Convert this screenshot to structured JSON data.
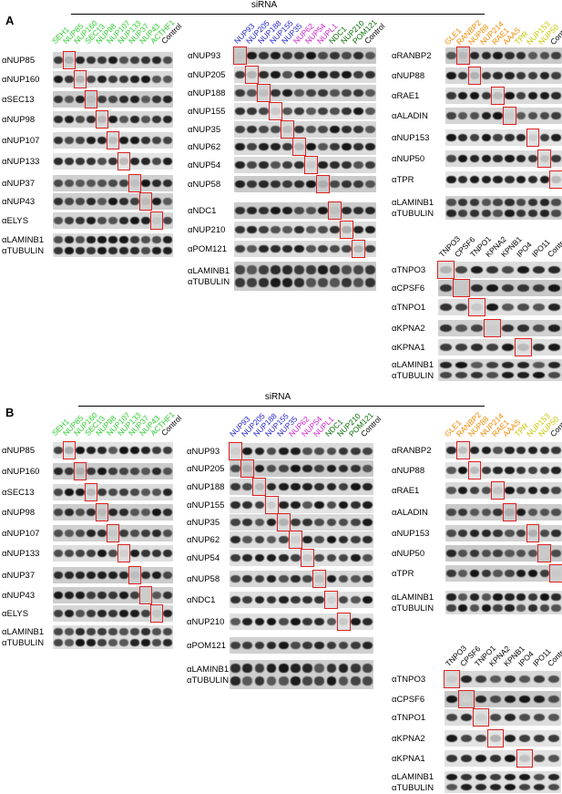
{
  "header": {
    "title": "siRNA"
  },
  "colors": {
    "green_light": "#2ecc2e",
    "blue": "#2222cc",
    "magenta": "#d020d0",
    "green_dark": "#0a6e0a",
    "orange": "#f08a00",
    "yellow": "#c8c800",
    "black": "#000000",
    "highlight_box": "#e02020"
  },
  "panels": [
    {
      "label": "A",
      "groups": [
        {
          "id": "nup-left",
          "columns": [
            {
              "text": "SEH1",
              "color": "green_light"
            },
            {
              "text": "NUP85",
              "color": "green_light"
            },
            {
              "text": "NUP160",
              "color": "green_light"
            },
            {
              "text": "SEC13",
              "color": "green_light"
            },
            {
              "text": "NUP98",
              "color": "green_light"
            },
            {
              "text": "NUP107",
              "color": "green_light"
            },
            {
              "text": "NUP133",
              "color": "green_light"
            },
            {
              "text": "NUP37",
              "color": "green_light"
            },
            {
              "text": "NUP43",
              "color": "green_light"
            },
            {
              "text": "ACTHF1",
              "color": "green_light"
            },
            {
              "text": "Control",
              "color": "black"
            }
          ],
          "rows": [
            {
              "label": "αNUP85",
              "highlight": 1
            },
            {
              "label": "αNUP160",
              "highlight": 2
            },
            {
              "label": "αSEC13",
              "highlight": 3
            },
            {
              "label": "αNUP98",
              "highlight": 4
            },
            {
              "label": "αNUP107",
              "highlight": 5
            },
            {
              "label": "αNUP133",
              "highlight": 6
            },
            {
              "label": "αNUP37",
              "highlight": 7
            },
            {
              "label": "αNUP43",
              "highlight": 8
            },
            {
              "label": "αELYS",
              "highlight": 9
            },
            {
              "label": "αLAMINB1\nαTUBULIN",
              "highlight": -1
            }
          ]
        },
        {
          "id": "nup-middle",
          "columns": [
            {
              "text": "NUP93",
              "color": "blue"
            },
            {
              "text": "NUP205",
              "color": "blue"
            },
            {
              "text": "NUP188",
              "color": "blue"
            },
            {
              "text": "NUP155",
              "color": "blue"
            },
            {
              "text": "NUP35",
              "color": "blue"
            },
            {
              "text": "NUP62",
              "color": "magenta"
            },
            {
              "text": "NUP54",
              "color": "magenta"
            },
            {
              "text": "NUPL1",
              "color": "magenta"
            },
            {
              "text": "NDC1",
              "color": "green_dark"
            },
            {
              "text": "NUP210",
              "color": "green_dark"
            },
            {
              "text": "POM121",
              "color": "green_dark"
            },
            {
              "text": "Control",
              "color": "black"
            }
          ],
          "rows": [
            {
              "label": "αNUP93",
              "highlight": 0
            },
            {
              "label": "αNUP205",
              "highlight": 1
            },
            {
              "label": "αNUP188",
              "highlight": 2
            },
            {
              "label": "αNUP155",
              "highlight": 3
            },
            {
              "label": "αNUP35",
              "highlight": 4
            },
            {
              "label": "αNUP62",
              "highlight": 5
            },
            {
              "label": "αNUP54",
              "highlight": 6
            },
            {
              "label": "αNUP58",
              "highlight": 7
            },
            {
              "label": "αNDC1",
              "highlight": 8
            },
            {
              "label": "αNUP210",
              "highlight": 9
            },
            {
              "label": "αPOM121",
              "highlight": 10
            },
            {
              "label": "αLAMINB1\nαTUBULIN",
              "highlight": -1
            }
          ]
        },
        {
          "id": "nup-right",
          "columns": [
            {
              "text": "GLE1",
              "color": "orange"
            },
            {
              "text": "RANBP2",
              "color": "orange"
            },
            {
              "text": "NUP88",
              "color": "orange"
            },
            {
              "text": "NUP214",
              "color": "orange"
            },
            {
              "text": "RAE1",
              "color": "orange"
            },
            {
              "text": "AAAS",
              "color": "orange"
            },
            {
              "text": "TPR",
              "color": "yellow"
            },
            {
              "text": "NUP153",
              "color": "yellow"
            },
            {
              "text": "NUP50",
              "color": "yellow"
            },
            {
              "text": "Control",
              "color": "black"
            }
          ],
          "rows": [
            {
              "label": "αRANBP2",
              "highlight": 1
            },
            {
              "label": "αNUP88",
              "highlight": 2
            },
            {
              "label": "αRAE1",
              "highlight": 4
            },
            {
              "label": "αALADIN",
              "highlight": 5
            },
            {
              "label": "αNUP153",
              "highlight": 7
            },
            {
              "label": "αNUP50",
              "highlight": 8
            },
            {
              "label": "αTPR",
              "highlight": 9
            },
            {
              "label": "αLAMINB1\nαTUBULIN",
              "highlight": -1
            }
          ]
        },
        {
          "id": "transport",
          "columns": [
            {
              "text": "TNPO3",
              "color": "black"
            },
            {
              "text": "CPSF6",
              "color": "black"
            },
            {
              "text": "TNPO1",
              "color": "black"
            },
            {
              "text": "KPNA2",
              "color": "black"
            },
            {
              "text": "KPNB1",
              "color": "black"
            },
            {
              "text": "IPO4",
              "color": "black"
            },
            {
              "text": "IPO11",
              "color": "black"
            },
            {
              "text": "Control",
              "color": "black"
            }
          ],
          "rows": [
            {
              "label": "αTNPO3",
              "highlight": 0
            },
            {
              "label": "αCPSF6",
              "highlight": 1
            },
            {
              "label": "αTNPO1",
              "highlight": 2
            },
            {
              "label": "αKPNA2",
              "highlight": 3
            },
            {
              "label": "αKPNA1",
              "highlight": 5
            },
            {
              "label": "αLAMINB1\nαTUBULIN",
              "highlight": -1
            }
          ]
        }
      ]
    },
    {
      "label": "B",
      "groups": [
        {
          "id": "nup-left",
          "columns": [
            {
              "text": "SEH1",
              "color": "green_light"
            },
            {
              "text": "NUP85",
              "color": "green_light"
            },
            {
              "text": "NUP160",
              "color": "green_light"
            },
            {
              "text": "SEC13",
              "color": "green_light"
            },
            {
              "text": "NUP98",
              "color": "green_light"
            },
            {
              "text": "NUP107",
              "color": "green_light"
            },
            {
              "text": "NUP133",
              "color": "green_light"
            },
            {
              "text": "NUP37",
              "color": "green_light"
            },
            {
              "text": "NUP43",
              "color": "green_light"
            },
            {
              "text": "ACTHF1",
              "color": "green_light"
            },
            {
              "text": "Control",
              "color": "black"
            }
          ],
          "rows": [
            {
              "label": "αNUP85",
              "highlight": 1
            },
            {
              "label": "αNUP160",
              "highlight": 2
            },
            {
              "label": "αSEC13",
              "highlight": 3
            },
            {
              "label": "αNUP98",
              "highlight": 4
            },
            {
              "label": "αNUP107",
              "highlight": 5
            },
            {
              "label": "αNUP133",
              "highlight": 6
            },
            {
              "label": "αNUP37",
              "highlight": 7
            },
            {
              "label": "αNUP43",
              "highlight": 8
            },
            {
              "label": "αELYS",
              "highlight": 9
            },
            {
              "label": "αLAMINB1\nαTUBULIN",
              "highlight": -1
            }
          ]
        },
        {
          "id": "nup-middle",
          "columns": [
            {
              "text": "NUP93",
              "color": "blue"
            },
            {
              "text": "NUP205",
              "color": "blue"
            },
            {
              "text": "NUP188",
              "color": "blue"
            },
            {
              "text": "NUP155",
              "color": "blue"
            },
            {
              "text": "NUP35",
              "color": "blue"
            },
            {
              "text": "NUP62",
              "color": "magenta"
            },
            {
              "text": "NUP54",
              "color": "magenta"
            },
            {
              "text": "NUPL1",
              "color": "magenta"
            },
            {
              "text": "NDC1",
              "color": "green_dark"
            },
            {
              "text": "NUP210",
              "color": "green_dark"
            },
            {
              "text": "POM121",
              "color": "green_dark"
            },
            {
              "text": "Control",
              "color": "black"
            }
          ],
          "rows": [
            {
              "label": "αNUP93",
              "highlight": 0
            },
            {
              "label": "αNUP205",
              "highlight": 1
            },
            {
              "label": "αNUP188",
              "highlight": 2
            },
            {
              "label": "αNUP155",
              "highlight": 3
            },
            {
              "label": "αNUP35",
              "highlight": 4
            },
            {
              "label": "αNUP62",
              "highlight": 5
            },
            {
              "label": "αNUP54",
              "highlight": 6
            },
            {
              "label": "αNUP58",
              "highlight": 7
            },
            {
              "label": "αNDC1",
              "highlight": 8
            },
            {
              "label": "αNUP210",
              "highlight": 9
            },
            {
              "label": "αPOM121",
              "highlight": -1
            },
            {
              "label": "αLAMINB1\nαTUBULIN",
              "highlight": -1
            }
          ]
        },
        {
          "id": "nup-right",
          "columns": [
            {
              "text": "GLE1",
              "color": "orange"
            },
            {
              "text": "RANBP2",
              "color": "orange"
            },
            {
              "text": "NUP88",
              "color": "orange"
            },
            {
              "text": "NUP214",
              "color": "orange"
            },
            {
              "text": "RAE1",
              "color": "orange"
            },
            {
              "text": "AAAS",
              "color": "orange"
            },
            {
              "text": "TPR",
              "color": "yellow"
            },
            {
              "text": "NUP153",
              "color": "yellow"
            },
            {
              "text": "NUP50",
              "color": "yellow"
            },
            {
              "text": "Control",
              "color": "black"
            }
          ],
          "rows": [
            {
              "label": "αRANBP2",
              "highlight": 1
            },
            {
              "label": "αNUP88",
              "highlight": 2
            },
            {
              "label": "αRAE1",
              "highlight": 4
            },
            {
              "label": "αALADIN",
              "highlight": 5
            },
            {
              "label": "αNUP153",
              "highlight": 7
            },
            {
              "label": "αNUP50",
              "highlight": 8
            },
            {
              "label": "αTPR",
              "highlight": 9
            },
            {
              "label": "αLAMINB1\nαTUBULIN",
              "highlight": -1
            }
          ]
        },
        {
          "id": "transport",
          "columns": [
            {
              "text": "TNPO3",
              "color": "black"
            },
            {
              "text": "CPSF6",
              "color": "black"
            },
            {
              "text": "TNPO1",
              "color": "black"
            },
            {
              "text": "KPNA2",
              "color": "black"
            },
            {
              "text": "KPNB1",
              "color": "black"
            },
            {
              "text": "IPO4",
              "color": "black"
            },
            {
              "text": "IPO11",
              "color": "black"
            },
            {
              "text": "Control",
              "color": "black"
            }
          ],
          "rows": [
            {
              "label": "αTNPO3",
              "highlight": 0
            },
            {
              "label": "αCPSF6",
              "highlight": 1
            },
            {
              "label": "αTNPO1",
              "highlight": 2
            },
            {
              "label": "αKPNA2",
              "highlight": 3
            },
            {
              "label": "αKPNA1",
              "highlight": 5
            },
            {
              "label": "αLAMINB1\nαTUBULIN",
              "highlight": -1
            }
          ]
        }
      ]
    }
  ]
}
